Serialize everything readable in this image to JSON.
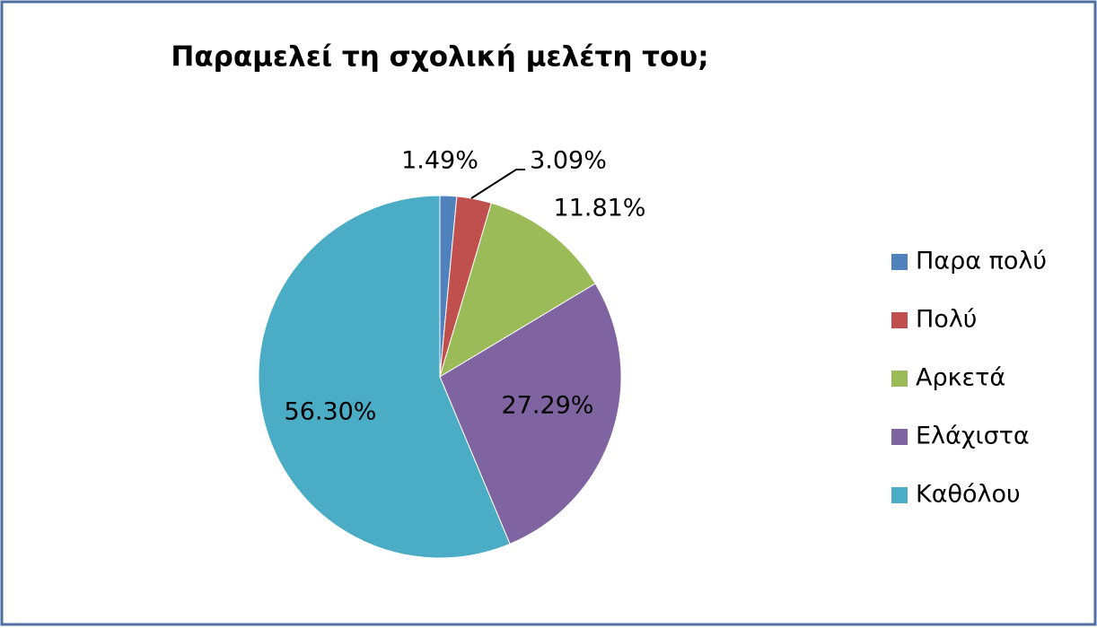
{
  "chart_data": {
    "type": "pie",
    "title": "Παραμελεί τη σχολική μελέτη του;",
    "categories": [
      "Παρα πολύ",
      "Πολύ",
      "Αρκετά",
      "Ελάχιστα",
      "Καθόλου"
    ],
    "values": [
      1.49,
      3.09,
      11.81,
      27.29,
      56.3
    ],
    "value_labels": [
      "1.49%",
      "3.09%",
      "11.81%",
      "27.29%",
      "56.30%"
    ],
    "colors": [
      "#4f81bd",
      "#c0504d",
      "#9bbb59",
      "#8064a2",
      "#4bacc6"
    ],
    "legend": "right"
  }
}
